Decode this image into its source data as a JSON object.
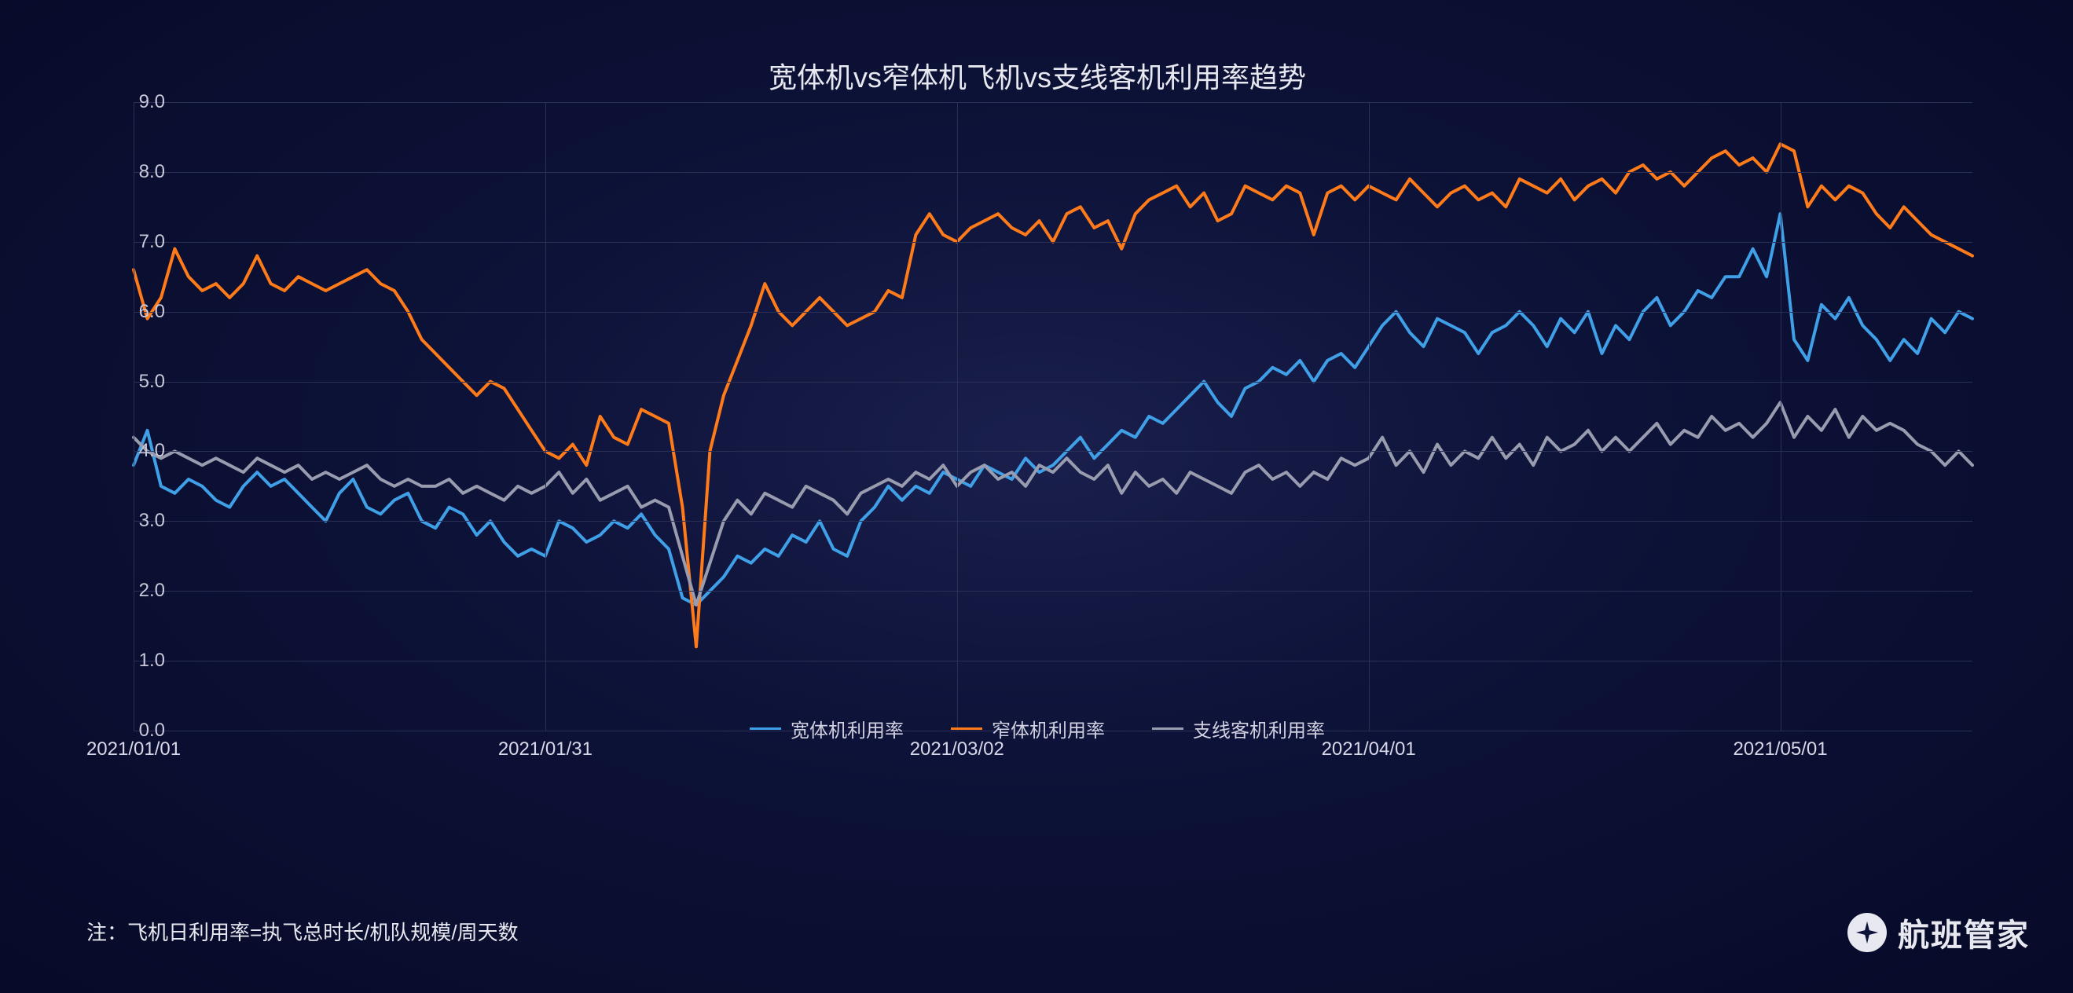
{
  "chart": {
    "type": "line",
    "title": "宽体机vs窄体机飞机vs支线客机利用率趋势",
    "title_fontsize": 36,
    "title_color": "#e8e8f0",
    "background_gradient": [
      "#1a1f4d",
      "#0d1238",
      "#070a28"
    ],
    "grid_color": "#2a2f55",
    "axis_label_color": "#c8c8d8",
    "axis_label_fontsize": 24,
    "ylim": [
      0.0,
      9.0
    ],
    "yticks": [
      "0.0",
      "1.0",
      "2.0",
      "3.0",
      "4.0",
      "5.0",
      "6.0",
      "7.0",
      "8.0",
      "9.0"
    ],
    "ytick_values": [
      0,
      1,
      2,
      3,
      4,
      5,
      6,
      7,
      8,
      9
    ],
    "xtick_labels": [
      "2021/01/01",
      "2021/01/31",
      "2021/03/02",
      "2021/04/01",
      "2021/05/01"
    ],
    "xtick_positions": [
      0,
      30,
      60,
      90,
      120
    ],
    "x_count": 135,
    "line_width": 4,
    "series": [
      {
        "name": "宽体机利用率",
        "color": "#3fa0e8",
        "values": [
          3.8,
          4.3,
          3.5,
          3.4,
          3.6,
          3.5,
          3.3,
          3.2,
          3.5,
          3.7,
          3.5,
          3.6,
          3.4,
          3.2,
          3.0,
          3.4,
          3.6,
          3.2,
          3.1,
          3.3,
          3.4,
          3.0,
          2.9,
          3.2,
          3.1,
          2.8,
          3.0,
          2.7,
          2.5,
          2.6,
          2.5,
          3.0,
          2.9,
          2.7,
          2.8,
          3.0,
          2.9,
          3.1,
          2.8,
          2.6,
          1.9,
          1.8,
          2.0,
          2.2,
          2.5,
          2.4,
          2.6,
          2.5,
          2.8,
          2.7,
          3.0,
          2.6,
          2.5,
          3.0,
          3.2,
          3.5,
          3.3,
          3.5,
          3.4,
          3.7,
          3.6,
          3.5,
          3.8,
          3.7,
          3.6,
          3.9,
          3.7,
          3.8,
          4.0,
          4.2,
          3.9,
          4.1,
          4.3,
          4.2,
          4.5,
          4.4,
          4.6,
          4.8,
          5.0,
          4.7,
          4.5,
          4.9,
          5.0,
          5.2,
          5.1,
          5.3,
          5.0,
          5.3,
          5.4,
          5.2,
          5.5,
          5.8,
          6.0,
          5.7,
          5.5,
          5.9,
          5.8,
          5.7,
          5.4,
          5.7,
          5.8,
          6.0,
          5.8,
          5.5,
          5.9,
          5.7,
          6.0,
          5.4,
          5.8,
          5.6,
          6.0,
          6.2,
          5.8,
          6.0,
          6.3,
          6.2,
          6.5,
          6.5,
          6.9,
          6.5,
          7.4,
          5.6,
          5.3,
          6.1,
          5.9,
          6.2,
          5.8,
          5.6,
          5.3,
          5.6,
          5.4,
          5.9,
          5.7,
          6.0,
          5.9
        ]
      },
      {
        "name": "窄体机利用率",
        "color": "#ff7b1a",
        "values": [
          6.6,
          5.9,
          6.2,
          6.9,
          6.5,
          6.3,
          6.4,
          6.2,
          6.4,
          6.8,
          6.4,
          6.3,
          6.5,
          6.4,
          6.3,
          6.4,
          6.5,
          6.6,
          6.4,
          6.3,
          6.0,
          5.6,
          5.4,
          5.2,
          5.0,
          4.8,
          5.0,
          4.9,
          4.6,
          4.3,
          4.0,
          3.9,
          4.1,
          3.8,
          4.5,
          4.2,
          4.1,
          4.6,
          4.5,
          4.4,
          3.2,
          1.2,
          4.0,
          4.8,
          5.3,
          5.8,
          6.4,
          6.0,
          5.8,
          6.0,
          6.2,
          6.0,
          5.8,
          5.9,
          6.0,
          6.3,
          6.2,
          7.1,
          7.4,
          7.1,
          7.0,
          7.2,
          7.3,
          7.4,
          7.2,
          7.1,
          7.3,
          7.0,
          7.4,
          7.5,
          7.2,
          7.3,
          6.9,
          7.4,
          7.6,
          7.7,
          7.8,
          7.5,
          7.7,
          7.3,
          7.4,
          7.8,
          7.7,
          7.6,
          7.8,
          7.7,
          7.1,
          7.7,
          7.8,
          7.6,
          7.8,
          7.7,
          7.6,
          7.9,
          7.7,
          7.5,
          7.7,
          7.8,
          7.6,
          7.7,
          7.5,
          7.9,
          7.8,
          7.7,
          7.9,
          7.6,
          7.8,
          7.9,
          7.7,
          8.0,
          8.1,
          7.9,
          8.0,
          7.8,
          8.0,
          8.2,
          8.3,
          8.1,
          8.2,
          8.0,
          8.4,
          8.3,
          7.5,
          7.8,
          7.6,
          7.8,
          7.7,
          7.4,
          7.2,
          7.5,
          7.3,
          7.1,
          7.0,
          6.9,
          6.8
        ]
      },
      {
        "name": "支线客机利用率",
        "color": "#989cae",
        "values": [
          4.2,
          4.0,
          3.9,
          4.0,
          3.9,
          3.8,
          3.9,
          3.8,
          3.7,
          3.9,
          3.8,
          3.7,
          3.8,
          3.6,
          3.7,
          3.6,
          3.7,
          3.8,
          3.6,
          3.5,
          3.6,
          3.5,
          3.5,
          3.6,
          3.4,
          3.5,
          3.4,
          3.3,
          3.5,
          3.4,
          3.5,
          3.7,
          3.4,
          3.6,
          3.3,
          3.4,
          3.5,
          3.2,
          3.3,
          3.2,
          2.5,
          1.8,
          2.4,
          3.0,
          3.3,
          3.1,
          3.4,
          3.3,
          3.2,
          3.5,
          3.4,
          3.3,
          3.1,
          3.4,
          3.5,
          3.6,
          3.5,
          3.7,
          3.6,
          3.8,
          3.5,
          3.7,
          3.8,
          3.6,
          3.7,
          3.5,
          3.8,
          3.7,
          3.9,
          3.7,
          3.6,
          3.8,
          3.4,
          3.7,
          3.5,
          3.6,
          3.4,
          3.7,
          3.6,
          3.5,
          3.4,
          3.7,
          3.8,
          3.6,
          3.7,
          3.5,
          3.7,
          3.6,
          3.9,
          3.8,
          3.9,
          4.2,
          3.8,
          4.0,
          3.7,
          4.1,
          3.8,
          4.0,
          3.9,
          4.2,
          3.9,
          4.1,
          3.8,
          4.2,
          4.0,
          4.1,
          4.3,
          4.0,
          4.2,
          4.0,
          4.2,
          4.4,
          4.1,
          4.3,
          4.2,
          4.5,
          4.3,
          4.4,
          4.2,
          4.4,
          4.7,
          4.2,
          4.5,
          4.3,
          4.6,
          4.2,
          4.5,
          4.3,
          4.4,
          4.3,
          4.1,
          4.0,
          3.8,
          4.0,
          3.8
        ]
      }
    ],
    "legend": {
      "position": "bottom-center",
      "fontsize": 24,
      "text_color": "#d0d0e0"
    }
  },
  "note": {
    "text": "注：飞机日利用率=执飞总时长/机队规模/周天数",
    "color": "#e8e8f0",
    "fontsize": 26
  },
  "brand": {
    "text": "航班管家",
    "color": "#e8e8f0",
    "fontsize": 40
  }
}
